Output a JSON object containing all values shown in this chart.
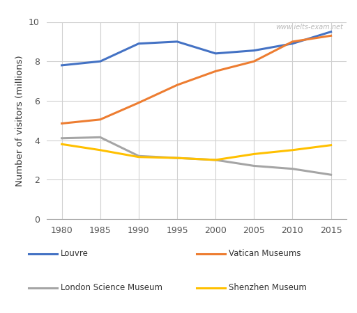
{
  "years": [
    1980,
    1985,
    1990,
    1995,
    2000,
    2005,
    2010,
    2015
  ],
  "louvre": [
    7.8,
    8.0,
    8.9,
    9.0,
    8.4,
    8.55,
    8.9,
    9.5
  ],
  "vatican": [
    4.85,
    5.05,
    5.9,
    6.8,
    7.5,
    8.0,
    9.0,
    9.3
  ],
  "london_science": [
    4.1,
    4.15,
    3.2,
    3.1,
    3.0,
    2.7,
    2.55,
    2.25
  ],
  "shenzhen": [
    3.8,
    3.5,
    3.15,
    3.1,
    3.0,
    3.3,
    3.5,
    3.75
  ],
  "louvre_color": "#4472C4",
  "vatican_color": "#ED7D31",
  "london_color": "#A5A5A5",
  "shenzhen_color": "#FFC000",
  "ylabel": "Number of visitors (millions)",
  "ylim": [
    0,
    10
  ],
  "yticks": [
    0,
    2,
    4,
    6,
    8,
    10
  ],
  "xlim": [
    1978,
    2017
  ],
  "xticks": [
    1980,
    1985,
    1990,
    1995,
    2000,
    2005,
    2010,
    2015
  ],
  "watermark": "www.ielts-exam.net",
  "legend_labels": [
    "Louvre",
    "Vatican Museums",
    "London Science Museum",
    "Shenzhen Museum"
  ],
  "line_width": 2.2,
  "background_color": "#FFFFFF",
  "grid_color": "#D0D0D0"
}
